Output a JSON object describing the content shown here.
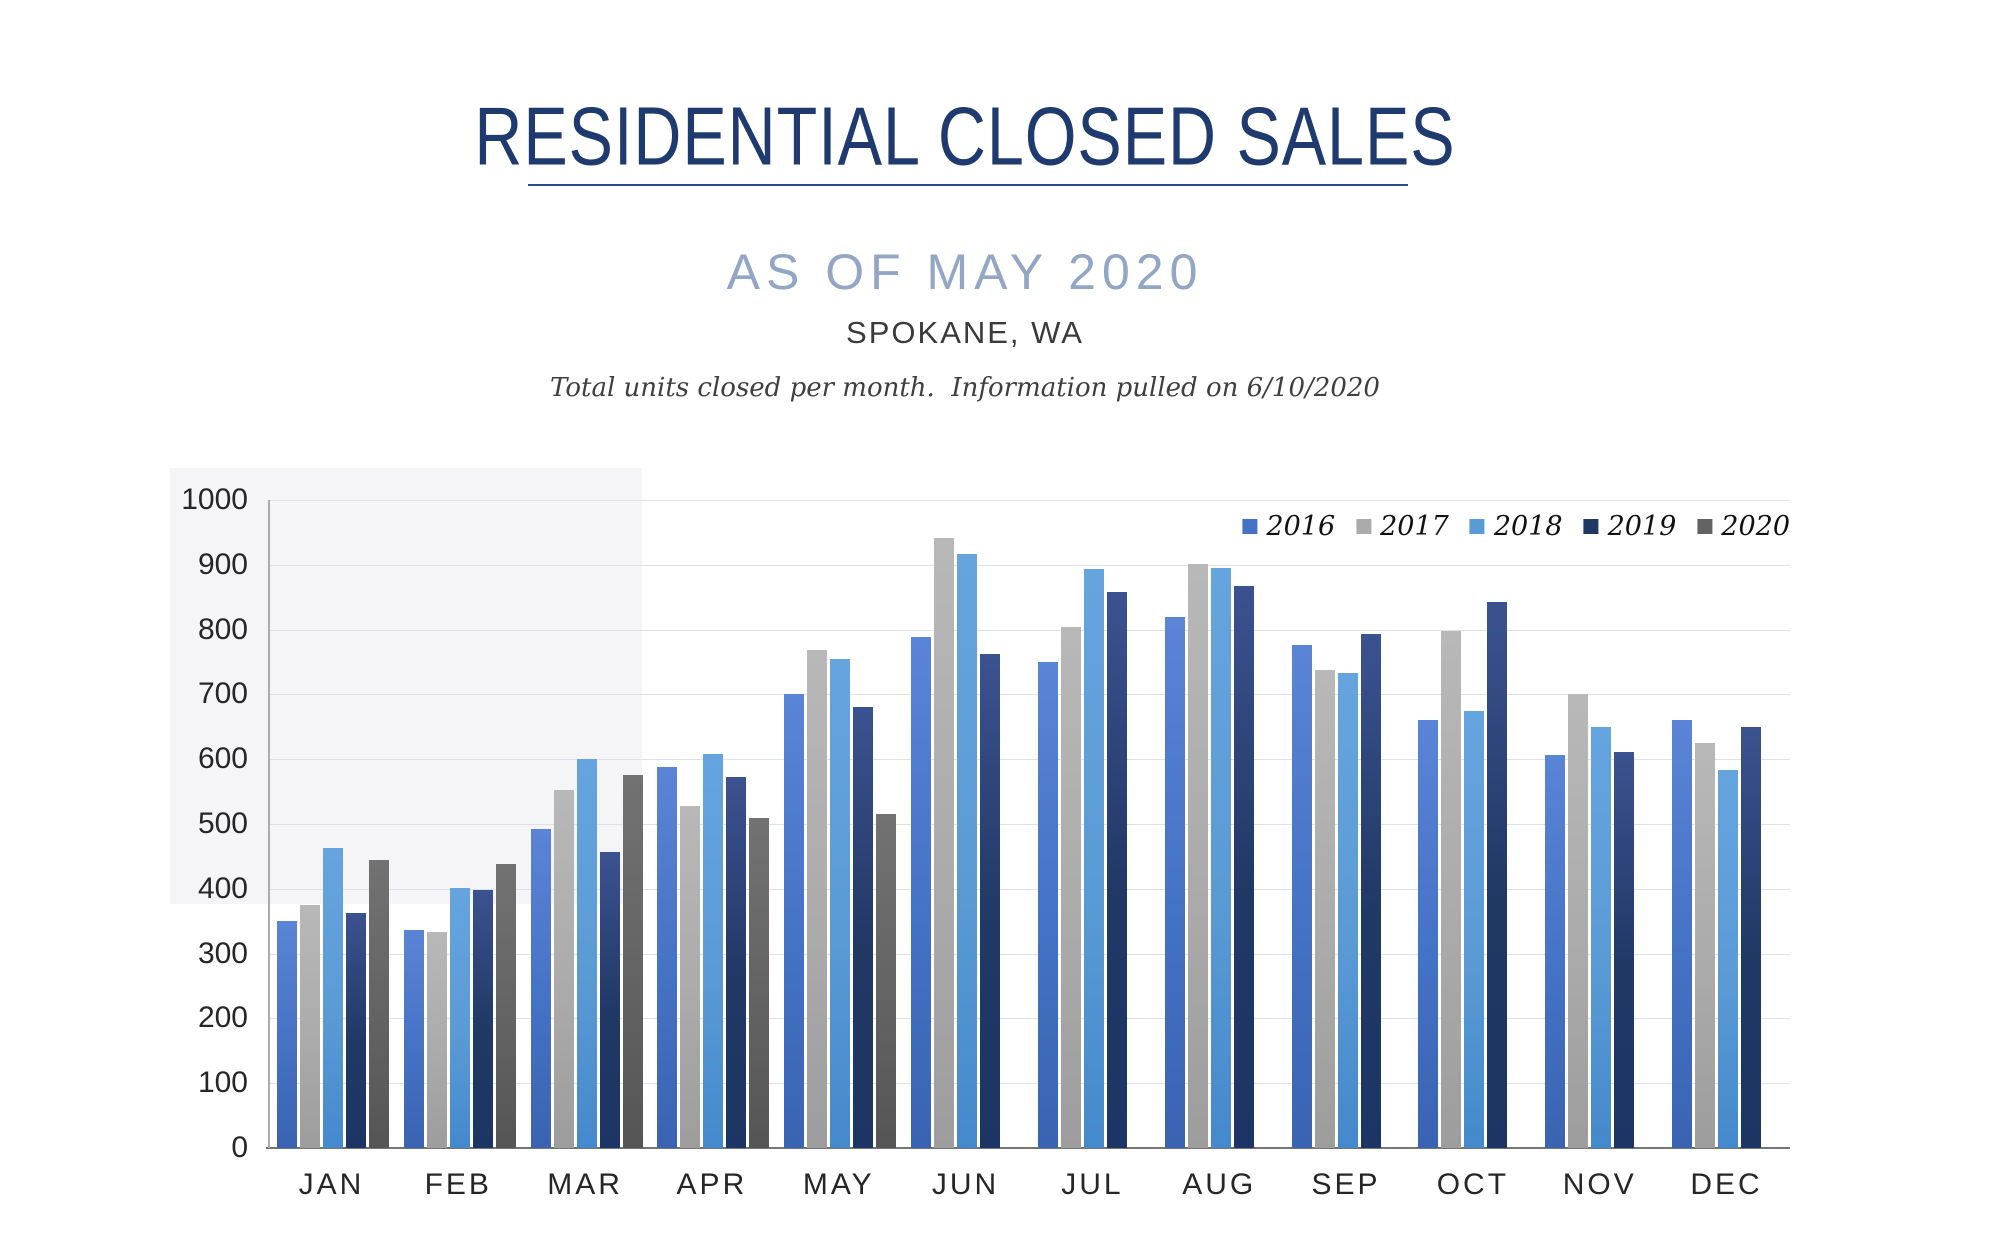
{
  "page": {
    "title": "RESIDENTIAL CLOSED SALES",
    "subtitle": "AS OF MAY 2020",
    "location": "SPOKANE, WA",
    "note": "Total units closed per month.  Information pulled on 6/10/2020"
  },
  "colors": {
    "title": "#1e3a6e",
    "title_rule": "#2c4a86",
    "subtitle": "#93a6c4",
    "location": "#3a3a3a",
    "note": "#3f3f3f",
    "gridline": "#dde1ec",
    "baseline": "#757575",
    "yaxis_line": "#ababab",
    "tick_label": "#262626",
    "background": "#ffffff"
  },
  "chart_data": {
    "type": "bar",
    "title": "RESIDENTIAL CLOSED SALES",
    "subtitle": "AS OF MAY 2020",
    "xlabel": "",
    "ylabel": "",
    "ylim": [
      0,
      1000
    ],
    "ytick_step": 100,
    "yticks": [
      "0",
      "100",
      "200",
      "300",
      "400",
      "500",
      "600",
      "700",
      "800",
      "900",
      "1000"
    ],
    "grid": "horizontal",
    "legend_position": "top-right",
    "categories": [
      "JAN",
      "FEB",
      "MAR",
      "APR",
      "MAY",
      "JUN",
      "JUL",
      "AUG",
      "SEP",
      "OCT",
      "NOV",
      "DEC"
    ],
    "series": [
      {
        "name": "2016",
        "color": "#4472c4",
        "gradient_top": "#5b84d6",
        "gradient_bottom": "#3a63b2",
        "values": [
          350,
          336,
          492,
          588,
          700,
          789,
          750,
          820,
          777,
          661,
          606,
          661
        ]
      },
      {
        "name": "2017",
        "color": "#ababab",
        "gradient_top": "#b8b8b8",
        "gradient_bottom": "#9d9d9d",
        "values": [
          375,
          333,
          553,
          528,
          768,
          942,
          804,
          901,
          738,
          798,
          700,
          625
        ]
      },
      {
        "name": "2018",
        "color": "#5b9bd5",
        "gradient_top": "#66a4e0",
        "gradient_bottom": "#4489cc",
        "values": [
          463,
          402,
          601,
          608,
          755,
          917,
          894,
          895,
          733,
          675,
          650,
          584
        ]
      },
      {
        "name": "2019",
        "color": "#203864",
        "gradient_top": "#3b5290",
        "gradient_bottom": "#1d3564",
        "values": [
          363,
          398,
          457,
          572,
          680,
          762,
          858,
          868,
          794,
          843,
          611,
          650
        ]
      },
      {
        "name": "2020",
        "color": "#636363",
        "gradient_top": "#727272",
        "gradient_bottom": "#555555",
        "values": [
          444,
          438,
          575,
          510,
          515,
          null,
          null,
          null,
          null,
          null,
          null,
          null
        ]
      }
    ]
  }
}
